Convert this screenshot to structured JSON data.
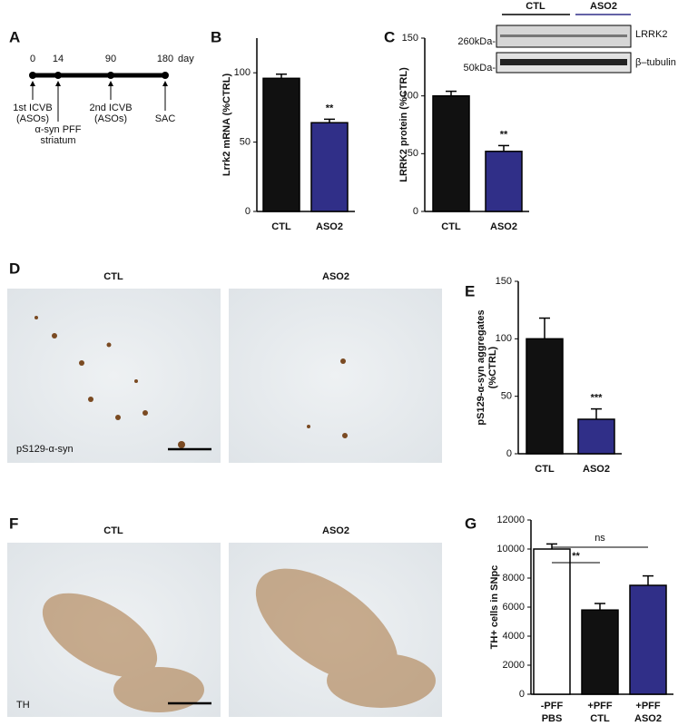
{
  "panel_labels": [
    "A",
    "B",
    "C",
    "D",
    "E",
    "F",
    "G"
  ],
  "timeline": {
    "ticks": [
      0,
      14,
      90,
      180
    ],
    "unit": "day",
    "events": [
      [
        "1st ICVB",
        "(ASOs)"
      ],
      [
        "α-syn PFF",
        "striatum"
      ],
      [
        "2nd ICVB",
        "(ASOs)"
      ],
      [
        "SAC"
      ]
    ]
  },
  "blot": {
    "groups": [
      "CTL",
      "ASO2"
    ],
    "markers": [
      "260kDa-",
      "50kDa-"
    ],
    "bands": [
      "LRRK2",
      "β–tubulin"
    ]
  },
  "images": [
    {
      "columns": [
        "CTL",
        "ASO2"
      ],
      "stain": "pS129-α-syn"
    },
    {
      "columns": [
        "CTL",
        "ASO2"
      ],
      "stain": "TH"
    }
  ],
  "chart_data": [
    {
      "type": "bar",
      "ylabel": "Lrrk2 mRNA (%CTRL)",
      "categories": [
        "CTL",
        "ASO2"
      ],
      "values": [
        96,
        64
      ],
      "errors": [
        3,
        2.5
      ],
      "colors": [
        "#111111",
        "#302f88"
      ],
      "ylim": [
        0,
        125
      ],
      "yticks": [
        0,
        50,
        100
      ],
      "annotations": [
        "**"
      ]
    },
    {
      "type": "bar",
      "ylabel": "LRRK2 protein (%CTRL)",
      "categories": [
        "CTL",
        "ASO2"
      ],
      "values": [
        100,
        52
      ],
      "errors": [
        4,
        5
      ],
      "colors": [
        "#111111",
        "#302f88"
      ],
      "ylim": [
        0,
        150
      ],
      "yticks": [
        0,
        50,
        100,
        150
      ],
      "annotations": [
        "**"
      ]
    },
    {
      "type": "bar",
      "ylabel": [
        "pS129-α-syn aggregates",
        "(%CTRL)"
      ],
      "categories": [
        "CTL",
        "ASO2"
      ],
      "values": [
        100,
        30
      ],
      "errors": [
        18,
        9
      ],
      "colors": [
        "#111111",
        "#302f88"
      ],
      "ylim": [
        0,
        150
      ],
      "yticks": [
        0,
        50,
        100,
        150
      ],
      "annotations": [
        "***"
      ]
    },
    {
      "type": "bar",
      "ylabel": "TH+ cells in SNpc",
      "categories": [
        "-PFF",
        "+PFF",
        "+PFF"
      ],
      "subcategories": [
        "PBS",
        "CTL",
        "ASO2"
      ],
      "values": [
        10000,
        5800,
        7500
      ],
      "errors": [
        350,
        450,
        650
      ],
      "colors": [
        "#ffffff",
        "#111111",
        "#302f88"
      ],
      "ylim": [
        0,
        12000
      ],
      "yticks": [
        0,
        2000,
        4000,
        6000,
        8000,
        10000,
        12000
      ],
      "annotations": [
        "ns",
        "**"
      ]
    }
  ]
}
